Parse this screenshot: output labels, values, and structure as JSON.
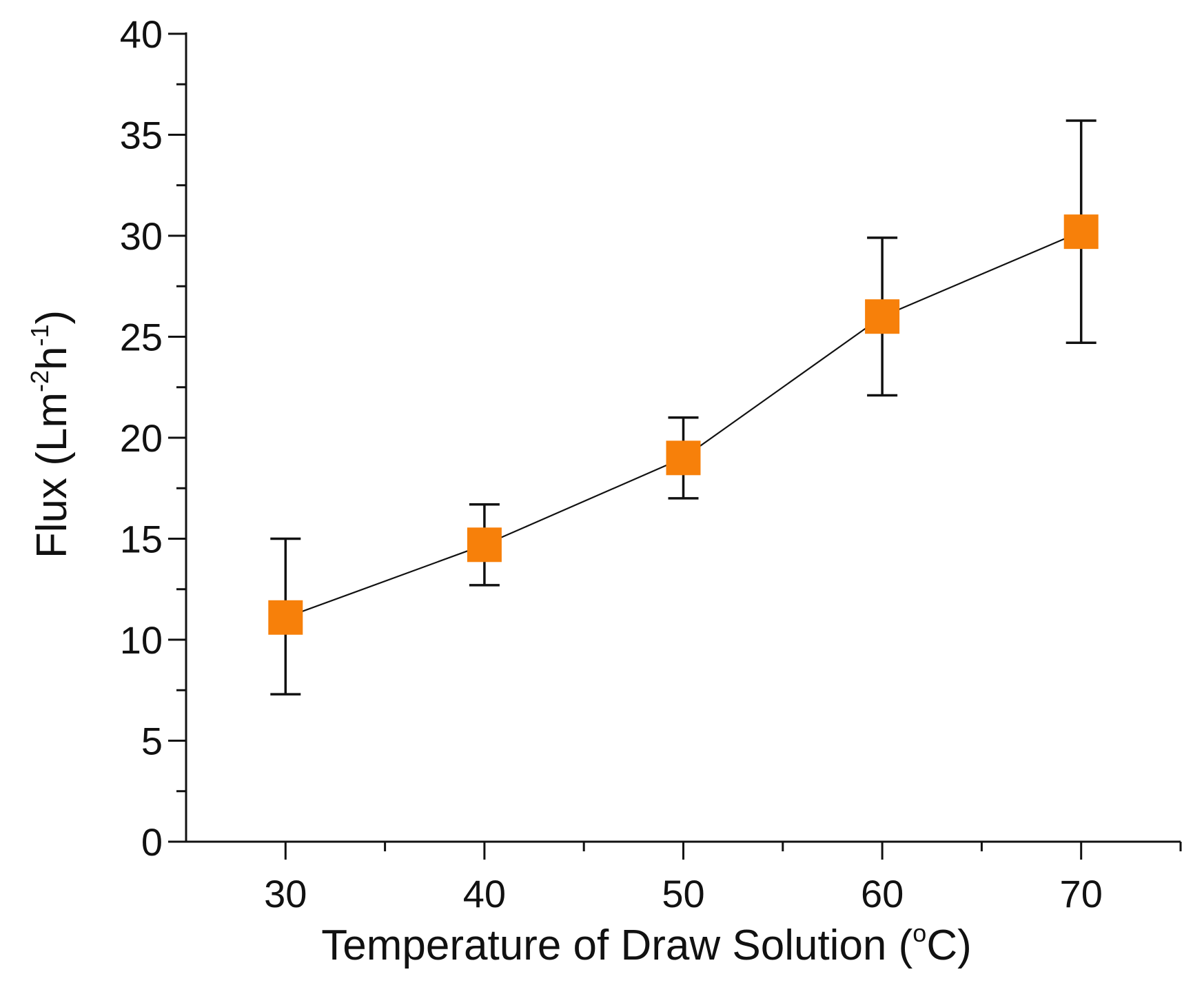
{
  "chart_data": {
    "type": "scatter",
    "title": "",
    "xlabel": {
      "main": "Temperature of Draw Solution (",
      "degree": "o",
      "unit": "C)"
    },
    "ylabel": {
      "part1": "Flux (Lm",
      "sup1": "-2",
      "part2": "h",
      "sup2": "-1",
      "part3": ")"
    },
    "xlim": [
      25,
      75
    ],
    "ylim": [
      0,
      40
    ],
    "xticks": [
      30,
      40,
      50,
      60,
      70
    ],
    "xminor": [
      35,
      45,
      55,
      65,
      75
    ],
    "yticks": [
      0,
      5,
      10,
      15,
      20,
      25,
      30,
      35,
      40
    ],
    "yminor": [
      2.5,
      7.5,
      12.5,
      17.5,
      22.5,
      27.5,
      32.5,
      37.5
    ],
    "grid": false,
    "series": [
      {
        "name": "Flux",
        "marker": "square",
        "connected": true,
        "x": [
          30,
          40,
          50,
          60,
          70
        ],
        "y": [
          11.1,
          14.7,
          19.0,
          26.0,
          30.2
        ],
        "err_low": [
          7.3,
          12.7,
          17.0,
          22.1,
          24.7
        ],
        "err_high": [
          15.0,
          16.7,
          21.0,
          29.9,
          35.7
        ]
      }
    ],
    "colors": {
      "marker": "#f7800a",
      "line": "#111111",
      "axis": "#111111"
    }
  }
}
